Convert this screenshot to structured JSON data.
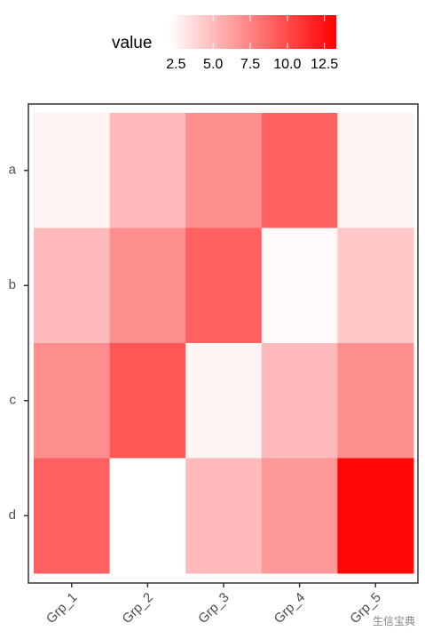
{
  "chart_data": {
    "type": "heatmap",
    "x": [
      "Grp_1",
      "Grp_2",
      "Grp_3",
      "Grp_4",
      "Grp_5"
    ],
    "y": [
      "a",
      "b",
      "c",
      "d"
    ],
    "values": [
      [
        2.5,
        5,
        7,
        9,
        2.5
      ],
      [
        5,
        7,
        9,
        2.2,
        4.5
      ],
      [
        7,
        9.5,
        2.5,
        5,
        7
      ],
      [
        9,
        2,
        5,
        6.5,
        13
      ]
    ],
    "colorbar": {
      "title": "value",
      "lim": [
        2,
        13.3
      ],
      "low": "#ffffff",
      "high": "#ff0000",
      "ticks": [
        2.5,
        {
          "value": 5,
          "label": "5.0"
        },
        7.5,
        {
          "value": 10,
          "label": "10.0"
        },
        12.5
      ]
    },
    "watermark": "生信宝典"
  }
}
